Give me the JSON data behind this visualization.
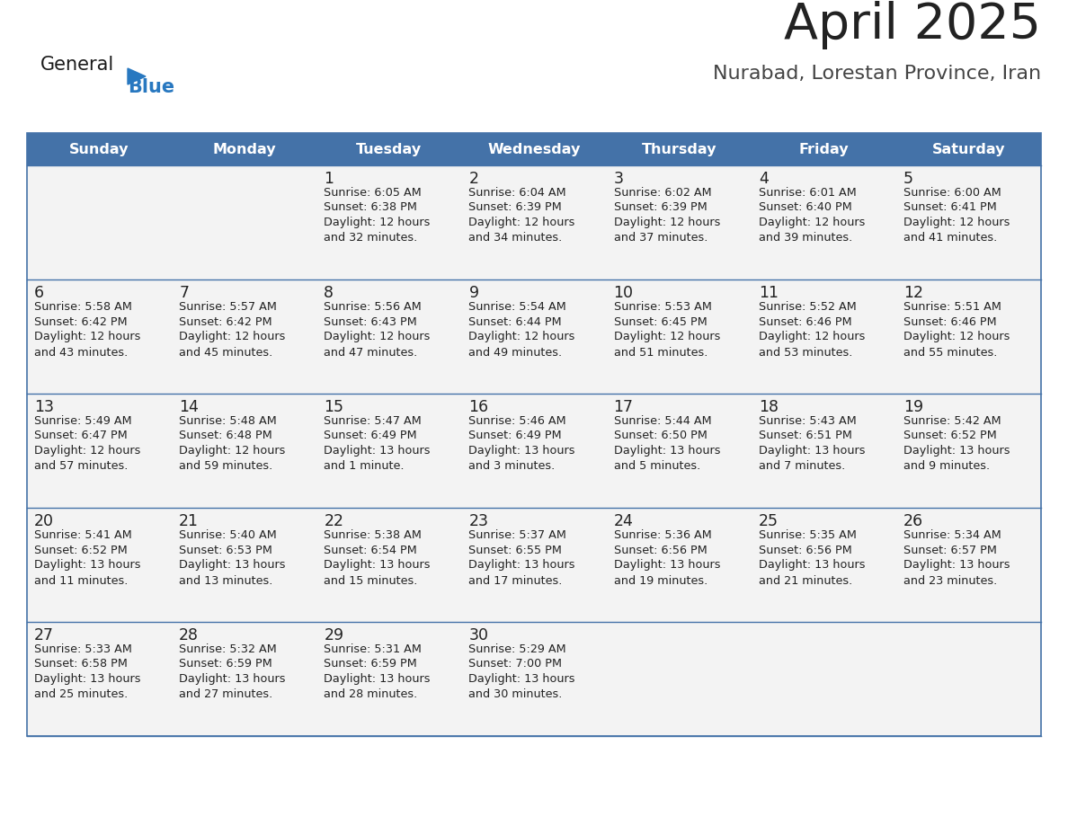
{
  "title": "April 2025",
  "subtitle": "Nurabad, Lorestan Province, Iran",
  "days_of_week": [
    "Sunday",
    "Monday",
    "Tuesday",
    "Wednesday",
    "Thursday",
    "Friday",
    "Saturday"
  ],
  "header_bg": "#4472a8",
  "header_text": "#ffffff",
  "cell_bg": "#f3f3f3",
  "border_color": "#4472a8",
  "day_num_color": "#222222",
  "text_color": "#222222",
  "title_color": "#222222",
  "subtitle_color": "#444444",
  "logo_general_color": "#1a1a1a",
  "logo_blue_color": "#2878c0",
  "logo_triangle_color": "#2878c0",
  "calendar": [
    [
      {
        "day": "",
        "sunrise": "",
        "sunset": "",
        "daylight": ""
      },
      {
        "day": "",
        "sunrise": "",
        "sunset": "",
        "daylight": ""
      },
      {
        "day": "1",
        "sunrise": "Sunrise: 6:05 AM",
        "sunset": "Sunset: 6:38 PM",
        "daylight": "Daylight: 12 hours\nand 32 minutes."
      },
      {
        "day": "2",
        "sunrise": "Sunrise: 6:04 AM",
        "sunset": "Sunset: 6:39 PM",
        "daylight": "Daylight: 12 hours\nand 34 minutes."
      },
      {
        "day": "3",
        "sunrise": "Sunrise: 6:02 AM",
        "sunset": "Sunset: 6:39 PM",
        "daylight": "Daylight: 12 hours\nand 37 minutes."
      },
      {
        "day": "4",
        "sunrise": "Sunrise: 6:01 AM",
        "sunset": "Sunset: 6:40 PM",
        "daylight": "Daylight: 12 hours\nand 39 minutes."
      },
      {
        "day": "5",
        "sunrise": "Sunrise: 6:00 AM",
        "sunset": "Sunset: 6:41 PM",
        "daylight": "Daylight: 12 hours\nand 41 minutes."
      }
    ],
    [
      {
        "day": "6",
        "sunrise": "Sunrise: 5:58 AM",
        "sunset": "Sunset: 6:42 PM",
        "daylight": "Daylight: 12 hours\nand 43 minutes."
      },
      {
        "day": "7",
        "sunrise": "Sunrise: 5:57 AM",
        "sunset": "Sunset: 6:42 PM",
        "daylight": "Daylight: 12 hours\nand 45 minutes."
      },
      {
        "day": "8",
        "sunrise": "Sunrise: 5:56 AM",
        "sunset": "Sunset: 6:43 PM",
        "daylight": "Daylight: 12 hours\nand 47 minutes."
      },
      {
        "day": "9",
        "sunrise": "Sunrise: 5:54 AM",
        "sunset": "Sunset: 6:44 PM",
        "daylight": "Daylight: 12 hours\nand 49 minutes."
      },
      {
        "day": "10",
        "sunrise": "Sunrise: 5:53 AM",
        "sunset": "Sunset: 6:45 PM",
        "daylight": "Daylight: 12 hours\nand 51 minutes."
      },
      {
        "day": "11",
        "sunrise": "Sunrise: 5:52 AM",
        "sunset": "Sunset: 6:46 PM",
        "daylight": "Daylight: 12 hours\nand 53 minutes."
      },
      {
        "day": "12",
        "sunrise": "Sunrise: 5:51 AM",
        "sunset": "Sunset: 6:46 PM",
        "daylight": "Daylight: 12 hours\nand 55 minutes."
      }
    ],
    [
      {
        "day": "13",
        "sunrise": "Sunrise: 5:49 AM",
        "sunset": "Sunset: 6:47 PM",
        "daylight": "Daylight: 12 hours\nand 57 minutes."
      },
      {
        "day": "14",
        "sunrise": "Sunrise: 5:48 AM",
        "sunset": "Sunset: 6:48 PM",
        "daylight": "Daylight: 12 hours\nand 59 minutes."
      },
      {
        "day": "15",
        "sunrise": "Sunrise: 5:47 AM",
        "sunset": "Sunset: 6:49 PM",
        "daylight": "Daylight: 13 hours\nand 1 minute."
      },
      {
        "day": "16",
        "sunrise": "Sunrise: 5:46 AM",
        "sunset": "Sunset: 6:49 PM",
        "daylight": "Daylight: 13 hours\nand 3 minutes."
      },
      {
        "day": "17",
        "sunrise": "Sunrise: 5:44 AM",
        "sunset": "Sunset: 6:50 PM",
        "daylight": "Daylight: 13 hours\nand 5 minutes."
      },
      {
        "day": "18",
        "sunrise": "Sunrise: 5:43 AM",
        "sunset": "Sunset: 6:51 PM",
        "daylight": "Daylight: 13 hours\nand 7 minutes."
      },
      {
        "day": "19",
        "sunrise": "Sunrise: 5:42 AM",
        "sunset": "Sunset: 6:52 PM",
        "daylight": "Daylight: 13 hours\nand 9 minutes."
      }
    ],
    [
      {
        "day": "20",
        "sunrise": "Sunrise: 5:41 AM",
        "sunset": "Sunset: 6:52 PM",
        "daylight": "Daylight: 13 hours\nand 11 minutes."
      },
      {
        "day": "21",
        "sunrise": "Sunrise: 5:40 AM",
        "sunset": "Sunset: 6:53 PM",
        "daylight": "Daylight: 13 hours\nand 13 minutes."
      },
      {
        "day": "22",
        "sunrise": "Sunrise: 5:38 AM",
        "sunset": "Sunset: 6:54 PM",
        "daylight": "Daylight: 13 hours\nand 15 minutes."
      },
      {
        "day": "23",
        "sunrise": "Sunrise: 5:37 AM",
        "sunset": "Sunset: 6:55 PM",
        "daylight": "Daylight: 13 hours\nand 17 minutes."
      },
      {
        "day": "24",
        "sunrise": "Sunrise: 5:36 AM",
        "sunset": "Sunset: 6:56 PM",
        "daylight": "Daylight: 13 hours\nand 19 minutes."
      },
      {
        "day": "25",
        "sunrise": "Sunrise: 5:35 AM",
        "sunset": "Sunset: 6:56 PM",
        "daylight": "Daylight: 13 hours\nand 21 minutes."
      },
      {
        "day": "26",
        "sunrise": "Sunrise: 5:34 AM",
        "sunset": "Sunset: 6:57 PM",
        "daylight": "Daylight: 13 hours\nand 23 minutes."
      }
    ],
    [
      {
        "day": "27",
        "sunrise": "Sunrise: 5:33 AM",
        "sunset": "Sunset: 6:58 PM",
        "daylight": "Daylight: 13 hours\nand 25 minutes."
      },
      {
        "day": "28",
        "sunrise": "Sunrise: 5:32 AM",
        "sunset": "Sunset: 6:59 PM",
        "daylight": "Daylight: 13 hours\nand 27 minutes."
      },
      {
        "day": "29",
        "sunrise": "Sunrise: 5:31 AM",
        "sunset": "Sunset: 6:59 PM",
        "daylight": "Daylight: 13 hours\nand 28 minutes."
      },
      {
        "day": "30",
        "sunrise": "Sunrise: 5:29 AM",
        "sunset": "Sunset: 7:00 PM",
        "daylight": "Daylight: 13 hours\nand 30 minutes."
      },
      {
        "day": "",
        "sunrise": "",
        "sunset": "",
        "daylight": ""
      },
      {
        "day": "",
        "sunrise": "",
        "sunset": "",
        "daylight": ""
      },
      {
        "day": "",
        "sunrise": "",
        "sunset": "",
        "daylight": ""
      }
    ]
  ]
}
